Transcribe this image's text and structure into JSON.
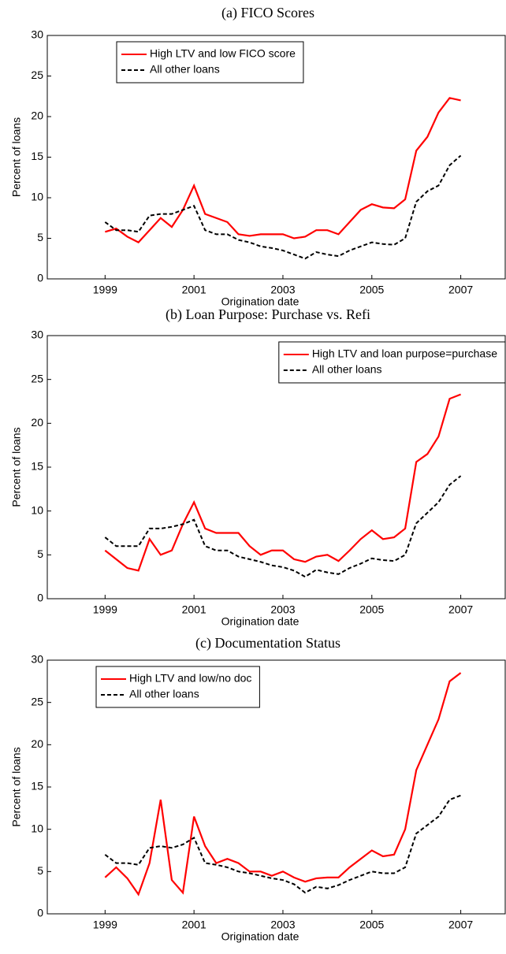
{
  "chart_data": [
    {
      "type": "line",
      "title": "(a) FICO Scores",
      "x_label": "Origination date",
      "y_label": "Percent of loans",
      "x": [
        1999,
        1999.25,
        1999.5,
        1999.75,
        2000,
        2000.25,
        2000.5,
        2000.75,
        2001,
        2001.25,
        2001.5,
        2001.75,
        2002,
        2002.25,
        2002.5,
        2002.75,
        2003,
        2003.25,
        2003.5,
        2003.75,
        2004,
        2004.25,
        2004.5,
        2004.75,
        2005,
        2005.25,
        2005.5,
        2005.75,
        2006,
        2006.25,
        2006.5,
        2006.75,
        2007
      ],
      "series": [
        {
          "name": "High LTV and low FICO score",
          "color": "#ff0000",
          "linestyle": "solid",
          "values": [
            5.8,
            6.2,
            5.2,
            4.5,
            6.0,
            7.5,
            6.4,
            8.5,
            11.5,
            8.0,
            7.5,
            7.0,
            5.5,
            5.3,
            5.5,
            5.5,
            5.5,
            5.0,
            5.2,
            6.0,
            6.0,
            5.5,
            7.0,
            8.5,
            9.2,
            8.8,
            8.7,
            9.8,
            15.8,
            17.5,
            20.5,
            22.3,
            22.0
          ]
        },
        {
          "name": "All other loans",
          "color": "#000000",
          "linestyle": "dashed",
          "values": [
            7.0,
            6.0,
            6.0,
            5.8,
            7.8,
            8.0,
            8.0,
            8.5,
            9.0,
            6.0,
            5.5,
            5.5,
            4.8,
            4.5,
            4.0,
            3.8,
            3.5,
            3.0,
            2.5,
            3.3,
            3.0,
            2.8,
            3.5,
            4.0,
            4.5,
            4.3,
            4.2,
            5.0,
            9.5,
            10.8,
            11.5,
            14.0,
            15.2
          ]
        }
      ],
      "xlim": [
        1997.7,
        2008
      ],
      "xticks": [
        1999,
        2001,
        2003,
        2005,
        2007
      ],
      "ylim": [
        0,
        30
      ],
      "yticks": [
        0,
        5,
        10,
        15,
        20,
        25,
        30
      ],
      "grid": false,
      "legend": "upper center"
    },
    {
      "type": "line",
      "title": "(b) Loan Purpose: Purchase vs. Refi",
      "x_label": "Origination date",
      "y_label": "Percent of loans",
      "x": [
        1999,
        1999.25,
        1999.5,
        1999.75,
        2000,
        2000.25,
        2000.5,
        2000.75,
        2001,
        2001.25,
        2001.5,
        2001.75,
        2002,
        2002.25,
        2002.5,
        2002.75,
        2003,
        2003.25,
        2003.5,
        2003.75,
        2004,
        2004.25,
        2004.5,
        2004.75,
        2005,
        2005.25,
        2005.5,
        2005.75,
        2006,
        2006.25,
        2006.5,
        2006.75,
        2007
      ],
      "series": [
        {
          "name": "High LTV and loan purpose=purchase",
          "color": "#ff0000",
          "linestyle": "solid",
          "values": [
            5.5,
            4.5,
            3.5,
            3.2,
            6.8,
            5.0,
            5.5,
            8.5,
            11.0,
            8.0,
            7.5,
            7.5,
            7.5,
            6.0,
            5.0,
            5.5,
            5.5,
            4.5,
            4.2,
            4.8,
            5.0,
            4.3,
            5.5,
            6.8,
            7.8,
            6.8,
            7.0,
            8.0,
            15.6,
            16.5,
            18.5,
            22.8,
            23.3
          ]
        },
        {
          "name": "All other loans",
          "color": "#000000",
          "linestyle": "dashed",
          "values": [
            7.0,
            6.0,
            6.0,
            6.0,
            8.0,
            8.0,
            8.2,
            8.5,
            9.0,
            6.0,
            5.5,
            5.5,
            4.8,
            4.5,
            4.2,
            3.8,
            3.6,
            3.2,
            2.5,
            3.3,
            3.0,
            2.8,
            3.5,
            4.0,
            4.6,
            4.4,
            4.3,
            5.0,
            8.6,
            9.8,
            11.0,
            13.0,
            14.0
          ]
        }
      ],
      "xlim": [
        1997.7,
        2008
      ],
      "xticks": [
        1999,
        2001,
        2003,
        2005,
        2007
      ],
      "ylim": [
        0,
        30
      ],
      "yticks": [
        0,
        5,
        10,
        15,
        20,
        25,
        30
      ],
      "grid": false,
      "legend": "upper right"
    },
    {
      "type": "line",
      "title": "(c) Documentation Status",
      "x_label": "Origination date",
      "y_label": "Percent of loans",
      "x": [
        1999,
        1999.25,
        1999.5,
        1999.75,
        2000,
        2000.25,
        2000.5,
        2000.75,
        2001,
        2001.25,
        2001.5,
        2001.75,
        2002,
        2002.25,
        2002.5,
        2002.75,
        2003,
        2003.25,
        2003.5,
        2003.75,
        2004,
        2004.25,
        2004.5,
        2004.75,
        2005,
        2005.25,
        2005.5,
        2005.75,
        2006,
        2006.25,
        2006.5,
        2006.75,
        2007
      ],
      "series": [
        {
          "name": "High LTV and low/no doc",
          "color": "#ff0000",
          "linestyle": "solid",
          "values": [
            4.3,
            5.5,
            4.2,
            2.3,
            6.0,
            13.5,
            4.0,
            2.5,
            11.5,
            8.0,
            6.0,
            6.5,
            6.0,
            5.0,
            5.0,
            4.5,
            5.0,
            4.3,
            3.8,
            4.2,
            4.3,
            4.3,
            5.5,
            6.5,
            7.5,
            6.8,
            7.0,
            10.0,
            17.0,
            20.0,
            23.0,
            27.5,
            28.5
          ]
        },
        {
          "name": "All other loans",
          "color": "#000000",
          "linestyle": "dashed",
          "values": [
            7.0,
            6.0,
            6.0,
            5.8,
            7.8,
            8.0,
            7.8,
            8.2,
            9.0,
            6.0,
            5.8,
            5.5,
            5.0,
            4.8,
            4.5,
            4.2,
            4.0,
            3.5,
            2.5,
            3.2,
            3.0,
            3.4,
            4.0,
            4.5,
            5.0,
            4.8,
            4.8,
            5.5,
            9.5,
            10.5,
            11.5,
            13.5,
            14.0
          ]
        }
      ],
      "xlim": [
        1997.7,
        2008
      ],
      "xticks": [
        1999,
        2001,
        2003,
        2005,
        2007
      ],
      "ylim": [
        0,
        30
      ],
      "yticks": [
        0,
        5,
        10,
        15,
        20,
        25,
        30
      ],
      "grid": false,
      "legend": "upper left"
    }
  ]
}
